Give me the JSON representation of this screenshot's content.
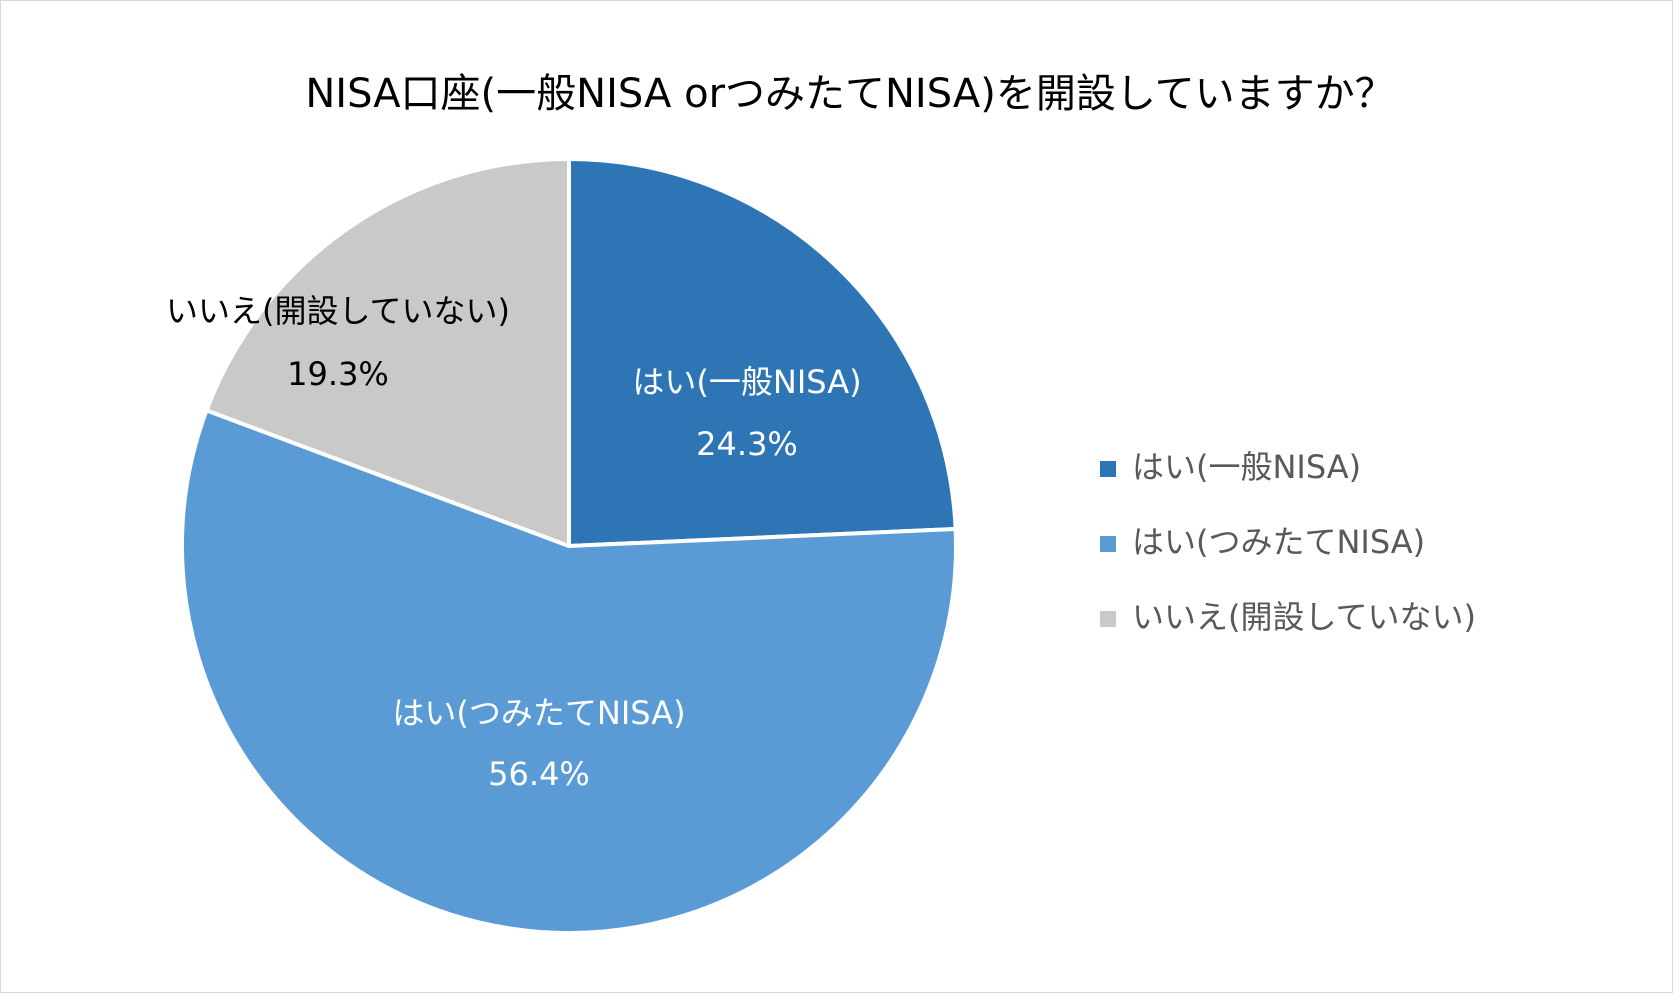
{
  "chart_data": {
    "type": "pie",
    "title": "NISA口座(一般NISA orつみたてNISA)を開設していますか？",
    "categories": [
      "はい(一般NISA)",
      "はい(つみたてNISA)",
      "いいえ(開設していない)"
    ],
    "values": [
      24.3,
      56.4,
      19.3
    ],
    "value_labels": [
      "24.3%",
      "56.4%",
      "19.3%"
    ],
    "colors": [
      "#2e75b6",
      "#5b9bd5",
      "#c9c9c9"
    ],
    "legend": "right"
  }
}
